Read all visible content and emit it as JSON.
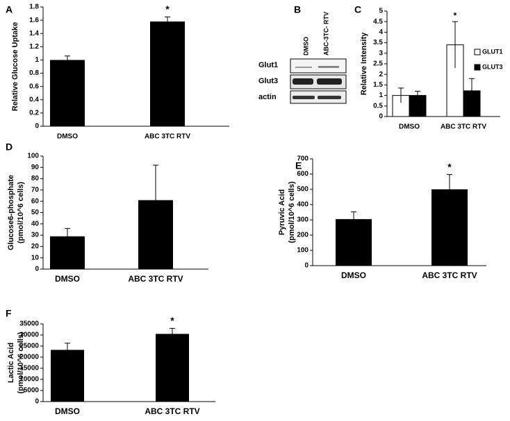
{
  "chart_data": [
    {
      "type": "bar",
      "panel": "A",
      "ylabel": "Relative Glucose Uptake",
      "categories": [
        "DMSO",
        "ABC 3TC RTV"
      ],
      "values": [
        1.0,
        1.58
      ],
      "errors": [
        0.06,
        0.07
      ],
      "color": "#000000",
      "ylim": [
        0,
        1.8
      ],
      "yticks": [
        0,
        0.2,
        0.4,
        0.6,
        0.8,
        1,
        1.2,
        1.4,
        1.6,
        1.8
      ],
      "annotation": "*",
      "grid": false
    },
    {
      "type": "grouped_bar",
      "panel": "C",
      "ylabel": "Relative Intensity",
      "categories": [
        "DMSO",
        "ABC 3TC RTV"
      ],
      "series": [
        {
          "name": "GLUT1",
          "color": "#ffffff",
          "values": [
            1.0,
            3.4
          ],
          "errors": [
            0.35,
            1.1
          ]
        },
        {
          "name": "GLUT3",
          "color": "#000000",
          "values": [
            1.0,
            1.22
          ],
          "errors": [
            0.2,
            0.58
          ]
        }
      ],
      "ylim": [
        0,
        5
      ],
      "yticks": [
        0,
        0.5,
        1,
        1.5,
        2,
        2.5,
        3,
        3.5,
        4,
        4.5,
        5
      ],
      "annotation": "*",
      "legend": "right",
      "grid": false
    },
    {
      "type": "bar",
      "panel": "D",
      "ylabel": [
        "Glucose6-phosphate",
        "(pmol/10^6 cells)"
      ],
      "categories": [
        "DMSO",
        "ABC 3TC RTV"
      ],
      "values": [
        29,
        61
      ],
      "errors": [
        7,
        31
      ],
      "color": "#000000",
      "ylim": [
        0,
        100
      ],
      "yticks": [
        0,
        10,
        20,
        30,
        40,
        50,
        60,
        70,
        80,
        90,
        100
      ],
      "grid": false
    },
    {
      "type": "bar",
      "panel": "E",
      "ylabel": [
        "Pyruvic Acid",
        "(pmol/10^6 cells)"
      ],
      "categories": [
        "DMSO",
        "ABC 3TC RTV"
      ],
      "values": [
        305,
        500
      ],
      "errors": [
        48,
        97
      ],
      "color": "#000000",
      "ylim": [
        0,
        700
      ],
      "yticks": [
        0,
        100,
        200,
        300,
        400,
        500,
        600,
        700
      ],
      "annotation": "*",
      "grid": false
    },
    {
      "type": "bar",
      "panel": "F",
      "ylabel": [
        "Lactic Acid",
        "(pmol/10^6 cells)"
      ],
      "categories": [
        "DMSO",
        "ABC 3TC RTV"
      ],
      "values": [
        23300,
        30500
      ],
      "errors": [
        3000,
        2500
      ],
      "color": "#000000",
      "ylim": [
        0,
        35000
      ],
      "yticks": [
        0,
        5000,
        10000,
        15000,
        20000,
        25000,
        30000,
        35000
      ],
      "annotation": "*",
      "grid": false
    }
  ],
  "blot": {
    "panel": "B",
    "lanes": [
      "DMSO",
      "ABC-3TC- RTV"
    ],
    "rows": [
      "Glut1",
      "Glut3",
      "actin"
    ]
  }
}
